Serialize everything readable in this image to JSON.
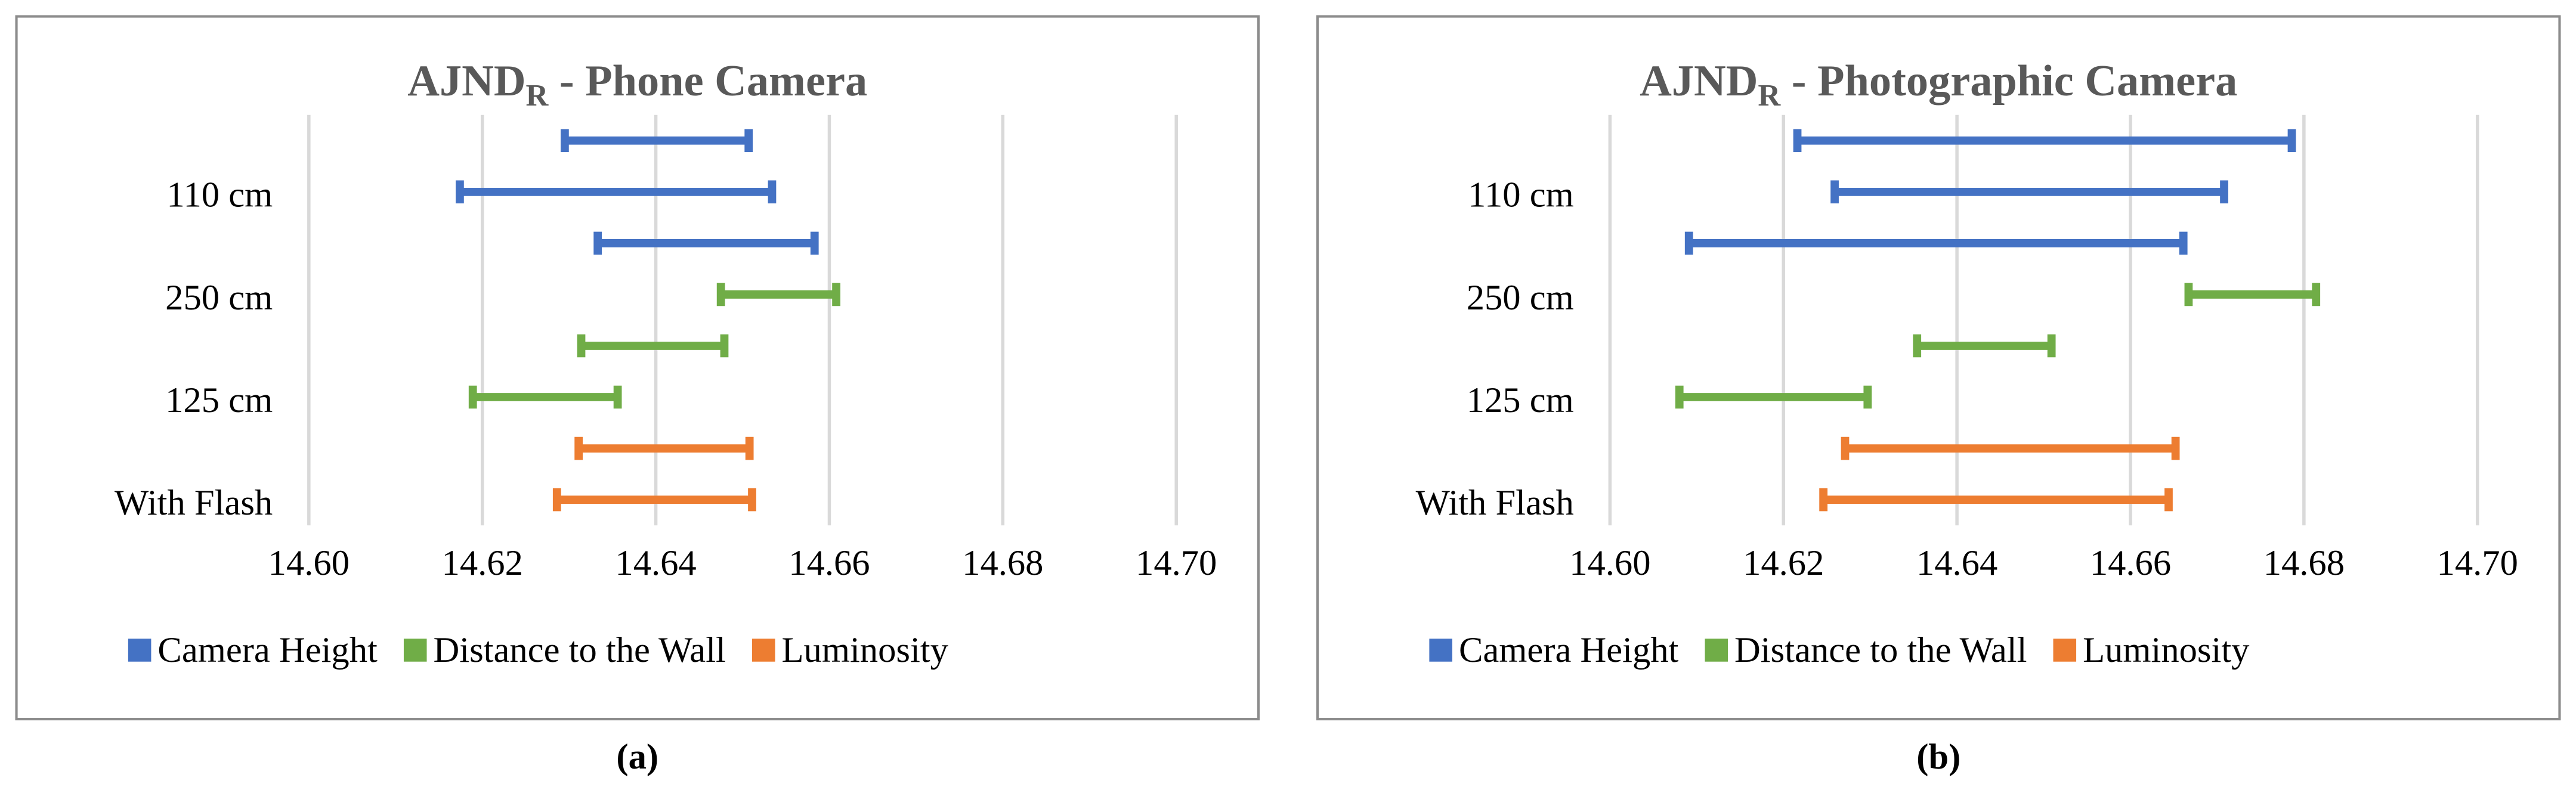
{
  "chart_data": [
    {
      "type": "range-bar",
      "title_main": "AJND",
      "title_sub": "R",
      "title_rest": " - Phone Camera",
      "caption": "(a)",
      "categories": [
        null,
        "110 cm",
        null,
        "250 cm",
        null,
        "125 cm",
        null,
        "With Flash"
      ],
      "series": [
        {
          "name": "Camera Height",
          "color": "#4472c4",
          "low": [
            14.6295,
            14.6174,
            14.6333,
            null,
            null,
            null,
            null,
            null
          ],
          "high": [
            14.6507,
            14.6534,
            14.6583,
            null,
            null,
            null,
            null,
            null
          ]
        },
        {
          "name": "Distance to the Wall",
          "color": "#70ad47",
          "low": [
            null,
            null,
            null,
            14.6475,
            14.6314,
            14.6189,
            null,
            null
          ],
          "high": [
            null,
            null,
            null,
            14.6608,
            14.6479,
            14.6356,
            null,
            null
          ]
        },
        {
          "name": "Luminosity",
          "color": "#ed7d31",
          "low": [
            null,
            null,
            null,
            null,
            null,
            null,
            14.6311,
            14.6286
          ],
          "high": [
            null,
            null,
            null,
            null,
            null,
            null,
            14.6508,
            14.6511
          ]
        }
      ],
      "xlim": [
        14.6,
        14.7
      ],
      "xticks": [
        {
          "value": 14.6,
          "label": "14.60"
        },
        {
          "value": 14.62,
          "label": "14.62"
        },
        {
          "value": 14.64,
          "label": "14.64"
        },
        {
          "value": 14.66,
          "label": "14.66"
        },
        {
          "value": 14.68,
          "label": "14.68"
        },
        {
          "value": 14.7,
          "label": "14.70"
        }
      ],
      "grid": true,
      "legend": "bottom"
    },
    {
      "type": "range-bar",
      "title_main": "AJND",
      "title_sub": "R",
      "title_rest": " - Photographic Camera",
      "caption": "(b)",
      "categories": [
        null,
        "110 cm",
        null,
        "250 cm",
        null,
        "125 cm",
        null,
        "With Flash"
      ],
      "series": [
        {
          "name": "Camera Height",
          "color": "#4472c4",
          "low": [
            14.6216,
            14.6259,
            14.6091,
            null,
            null,
            null,
            null,
            null
          ],
          "high": [
            14.6786,
            14.6708,
            14.6661,
            null,
            null,
            null,
            null,
            null
          ]
        },
        {
          "name": "Distance to the Wall",
          "color": "#70ad47",
          "low": [
            null,
            null,
            null,
            14.6667,
            14.6354,
            14.608,
            null,
            null
          ],
          "high": [
            null,
            null,
            null,
            14.6814,
            14.6509,
            14.6297,
            null,
            null
          ]
        },
        {
          "name": "Luminosity",
          "color": "#ed7d31",
          "low": [
            null,
            null,
            null,
            null,
            null,
            null,
            14.6271,
            14.6246
          ],
          "high": [
            null,
            null,
            null,
            null,
            null,
            null,
            14.6652,
            14.6644
          ]
        }
      ],
      "xlim": [
        14.6,
        14.7
      ],
      "xticks": [
        {
          "value": 14.6,
          "label": "14.60"
        },
        {
          "value": 14.62,
          "label": "14.62"
        },
        {
          "value": 14.64,
          "label": "14.64"
        },
        {
          "value": 14.66,
          "label": "14.66"
        },
        {
          "value": 14.68,
          "label": "14.68"
        },
        {
          "value": 14.7,
          "label": "14.70"
        }
      ],
      "grid": true,
      "legend": "bottom"
    }
  ]
}
